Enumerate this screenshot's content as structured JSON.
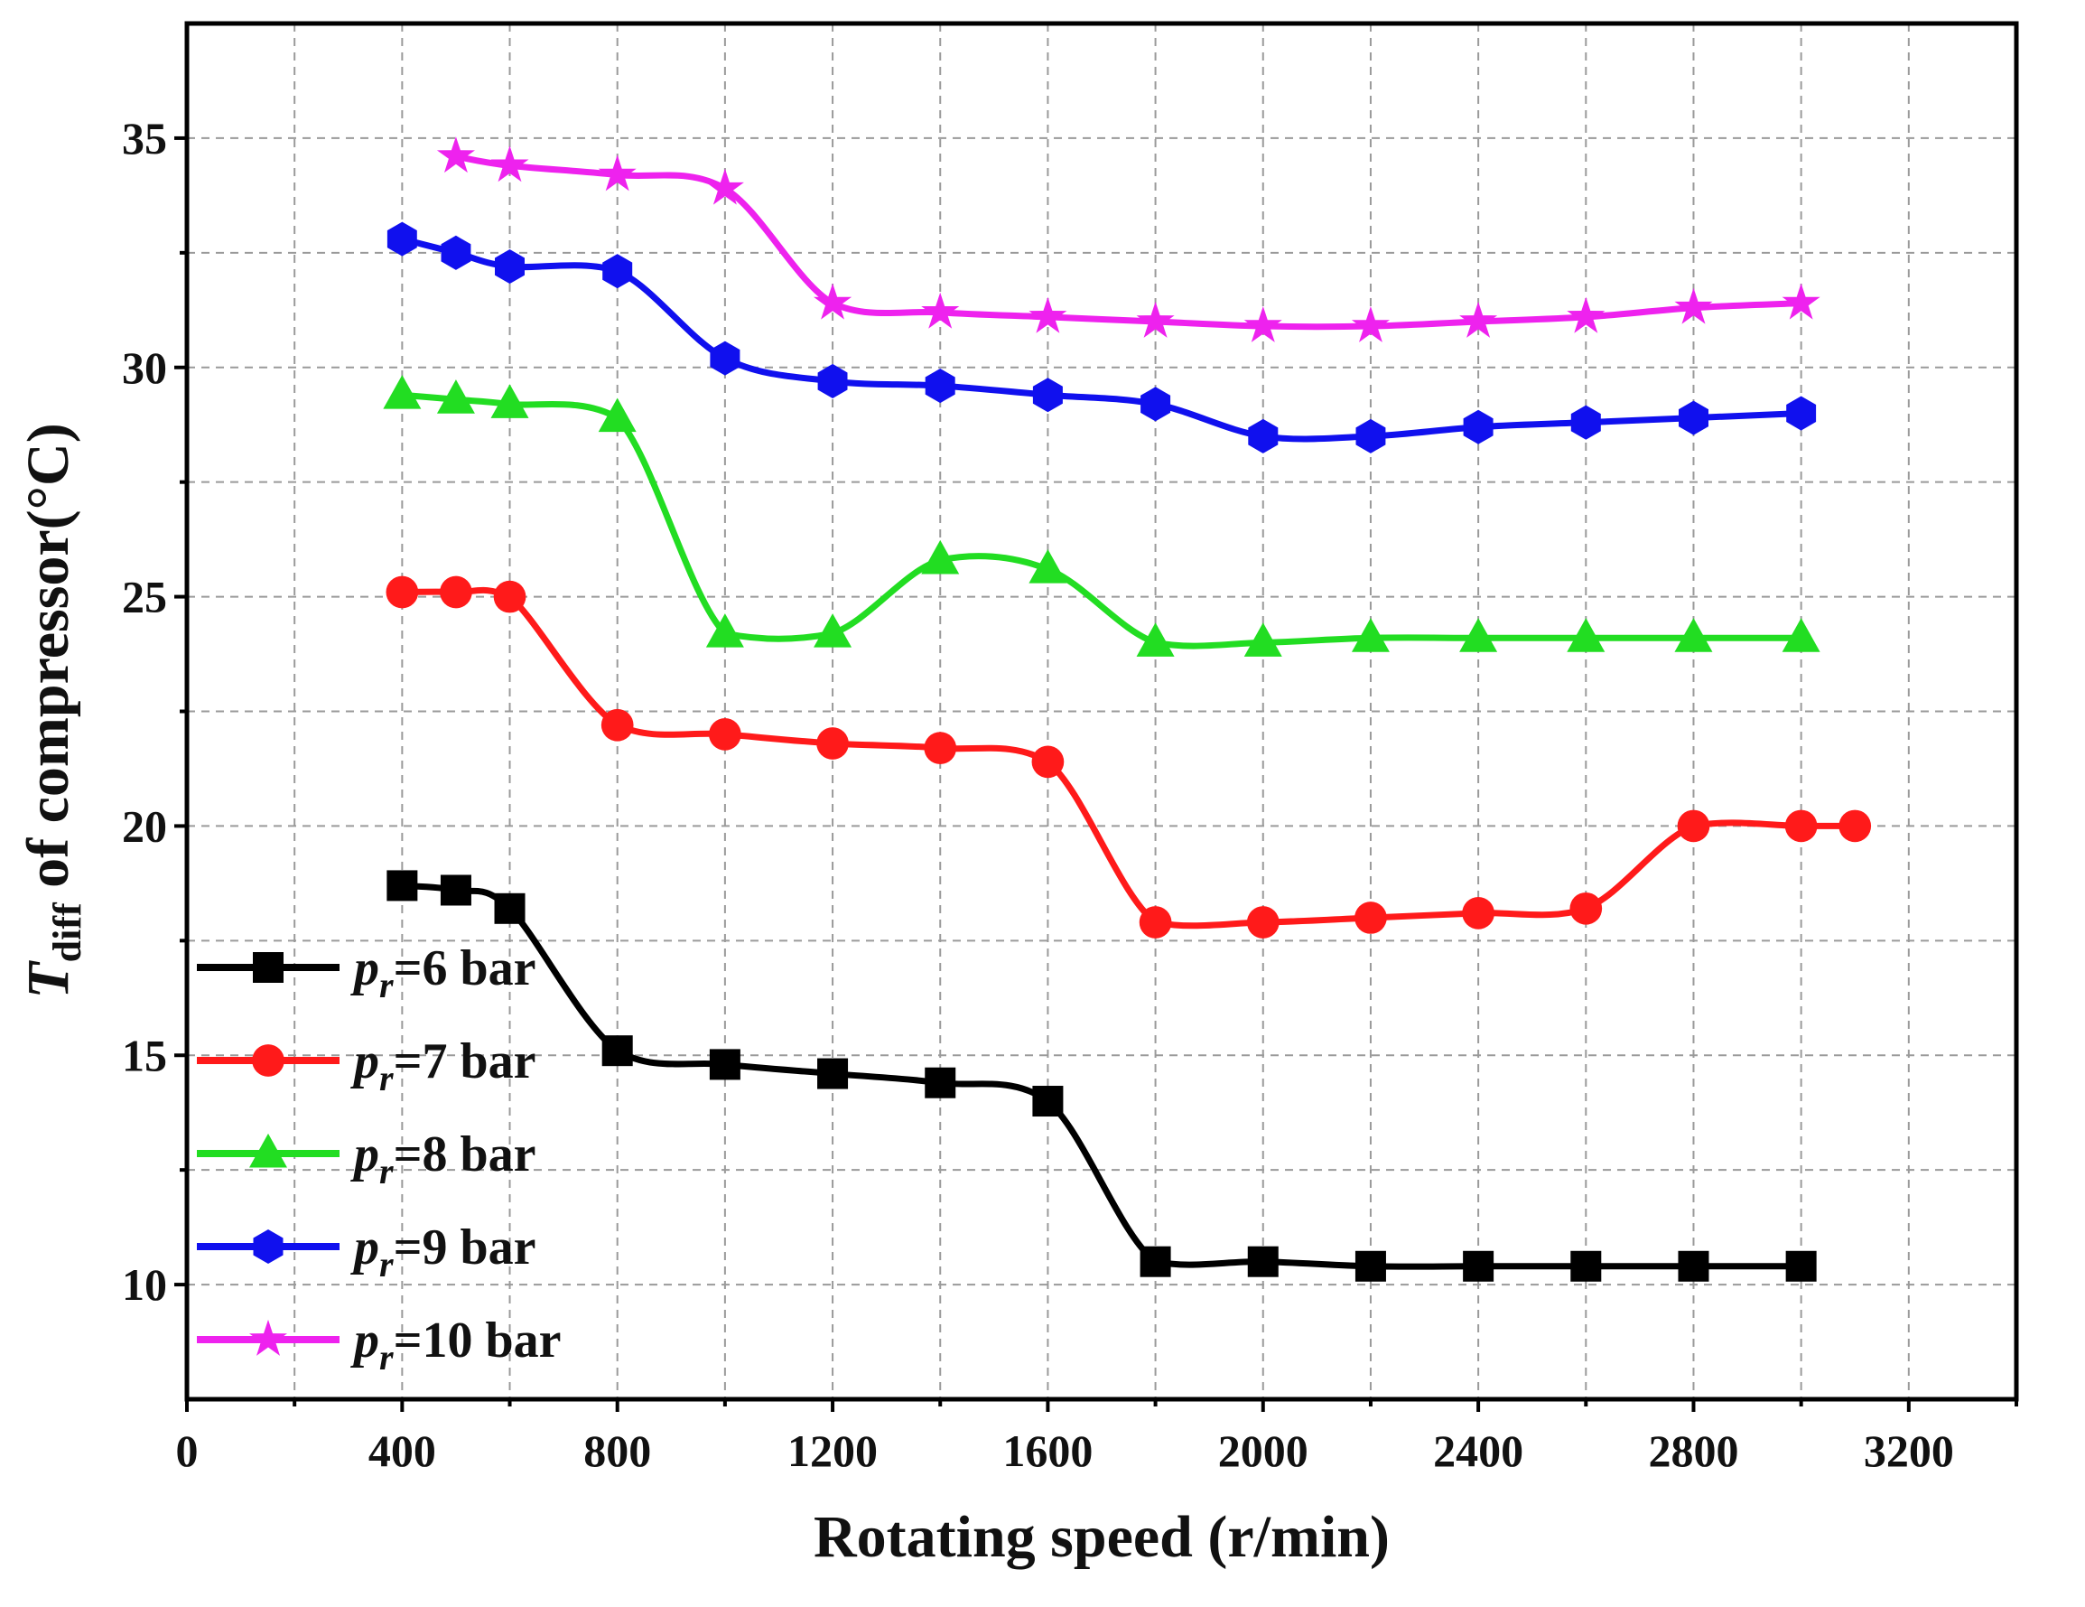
{
  "chart_data": {
    "type": "line",
    "xlabel": "Rotating speed (r/min)",
    "ylabel": {
      "main": "T",
      "sub": "diff",
      "rest": " of compressor(°C)"
    },
    "xlim": [
      0,
      3400
    ],
    "ylim": [
      7.5,
      37.5
    ],
    "x_ticks": [
      0,
      400,
      800,
      1200,
      1600,
      2000,
      2400,
      2800,
      3200
    ],
    "x_tick_labels": [
      "0",
      "400",
      "800",
      "1200",
      "1600",
      "2000",
      "2400",
      "2800",
      "3200"
    ],
    "y_ticks": [
      10,
      15,
      20,
      25,
      30,
      35
    ],
    "y_tick_labels": [
      "10",
      "15",
      "20",
      "25",
      "30",
      "35"
    ],
    "grid": true,
    "legend_position": "bottom-left",
    "series": [
      {
        "name": "p_r=6 bar",
        "label": {
          "p": "p",
          "sub": "r",
          "rest": "=6 bar"
        },
        "color": "#000000",
        "marker": "square",
        "x": [
          400,
          500,
          600,
          800,
          1000,
          1200,
          1400,
          1600,
          1800,
          2000,
          2200,
          2400,
          2600,
          2800,
          3000
        ],
        "y": [
          18.7,
          18.6,
          18.2,
          15.1,
          14.8,
          14.6,
          14.4,
          14.0,
          10.5,
          10.5,
          10.4,
          10.4,
          10.4,
          10.4,
          10.4
        ]
      },
      {
        "name": "p_r=7 bar",
        "label": {
          "p": "p",
          "sub": "r",
          "rest": "=7 bar"
        },
        "color": "#ff1a1a",
        "marker": "circle",
        "x": [
          400,
          500,
          600,
          800,
          1000,
          1200,
          1400,
          1600,
          1800,
          2000,
          2200,
          2400,
          2600,
          2800,
          3000,
          3100
        ],
        "y": [
          25.1,
          25.1,
          25.0,
          22.2,
          22.0,
          21.8,
          21.7,
          21.4,
          17.9,
          17.9,
          18.0,
          18.1,
          18.2,
          20.0,
          20.0,
          20.0
        ]
      },
      {
        "name": "p_r=8 bar",
        "label": {
          "p": "p",
          "sub": "r",
          "rest": "=8 bar"
        },
        "color": "#22dd22",
        "marker": "triangle",
        "x": [
          400,
          500,
          600,
          800,
          1000,
          1200,
          1400,
          1600,
          1800,
          2000,
          2200,
          2400,
          2600,
          2800,
          3000
        ],
        "y": [
          29.4,
          29.3,
          29.2,
          28.9,
          24.2,
          24.2,
          25.8,
          25.6,
          24.0,
          24.0,
          24.1,
          24.1,
          24.1,
          24.1,
          24.1
        ]
      },
      {
        "name": "p_r=9 bar",
        "label": {
          "p": "p",
          "sub": "r",
          "rest": "=9 bar"
        },
        "color": "#1010ee",
        "marker": "hexagon",
        "x": [
          400,
          500,
          600,
          800,
          1000,
          1200,
          1400,
          1600,
          1800,
          2000,
          2200,
          2400,
          2600,
          2800,
          3000
        ],
        "y": [
          32.8,
          32.5,
          32.2,
          32.1,
          30.2,
          29.7,
          29.6,
          29.4,
          29.2,
          28.5,
          28.5,
          28.7,
          28.8,
          28.9,
          29.0
        ]
      },
      {
        "name": "p_r=10 bar",
        "label": {
          "p": "p",
          "sub": "r",
          "rest": "=10 bar"
        },
        "color": "#ee22ee",
        "marker": "star",
        "x": [
          500,
          600,
          800,
          1000,
          1200,
          1400,
          1600,
          1800,
          2000,
          2200,
          2400,
          2600,
          2800,
          3000
        ],
        "y": [
          34.6,
          34.4,
          34.2,
          33.9,
          31.4,
          31.2,
          31.1,
          31.0,
          30.9,
          30.9,
          31.0,
          31.1,
          31.3,
          31.4
        ]
      }
    ]
  }
}
